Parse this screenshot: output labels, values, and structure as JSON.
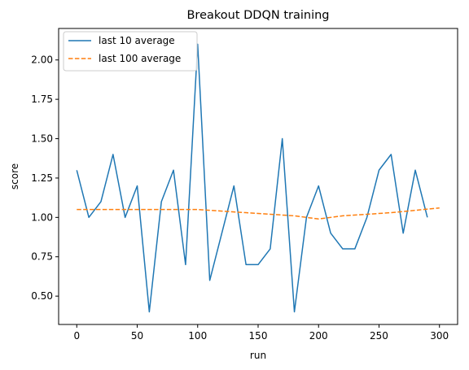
{
  "chart_data": {
    "type": "line",
    "title": "Breakout DDQN training",
    "xlabel": "run",
    "ylabel": "score",
    "xlim": [
      -15,
      315
    ],
    "ylim": [
      0.32,
      2.2
    ],
    "xticks": [
      0,
      50,
      100,
      150,
      200,
      250,
      300
    ],
    "xtick_labels": [
      "0",
      "50",
      "100",
      "150",
      "200",
      "250",
      "300"
    ],
    "yticks": [
      0.5,
      0.75,
      1.0,
      1.25,
      1.5,
      1.75,
      2.0
    ],
    "ytick_labels": [
      "0.50",
      "0.75",
      "1.00",
      "1.25",
      "1.50",
      "1.75",
      "2.00"
    ],
    "grid": false,
    "legend_position": "top-left",
    "series": [
      {
        "name": "last 10 average",
        "color": "#1f77b4",
        "style": "solid",
        "x": [
          0,
          10,
          20,
          30,
          40,
          50,
          60,
          70,
          80,
          90,
          100,
          110,
          120,
          130,
          140,
          150,
          160,
          170,
          180,
          190,
          200,
          210,
          220,
          230,
          240,
          250,
          260,
          270,
          280,
          290
        ],
        "y": [
          1.3,
          1.0,
          1.1,
          1.4,
          1.0,
          1.2,
          0.4,
          1.1,
          1.3,
          0.7,
          2.1,
          0.6,
          0.9,
          1.2,
          0.7,
          0.7,
          0.8,
          1.5,
          0.4,
          1.0,
          1.2,
          0.9,
          0.8,
          0.8,
          1.0,
          1.3,
          1.4,
          0.9,
          1.3,
          1.0
        ]
      },
      {
        "name": "last 100 average",
        "color": "#ff7f0e",
        "style": "dashed",
        "x": [
          0,
          20,
          40,
          60,
          80,
          100,
          120,
          140,
          160,
          180,
          200,
          220,
          240,
          260,
          280,
          300
        ],
        "y": [
          1.05,
          1.05,
          1.05,
          1.05,
          1.05,
          1.05,
          1.04,
          1.03,
          1.02,
          1.01,
          0.99,
          1.01,
          1.02,
          1.03,
          1.045,
          1.06
        ]
      }
    ]
  }
}
